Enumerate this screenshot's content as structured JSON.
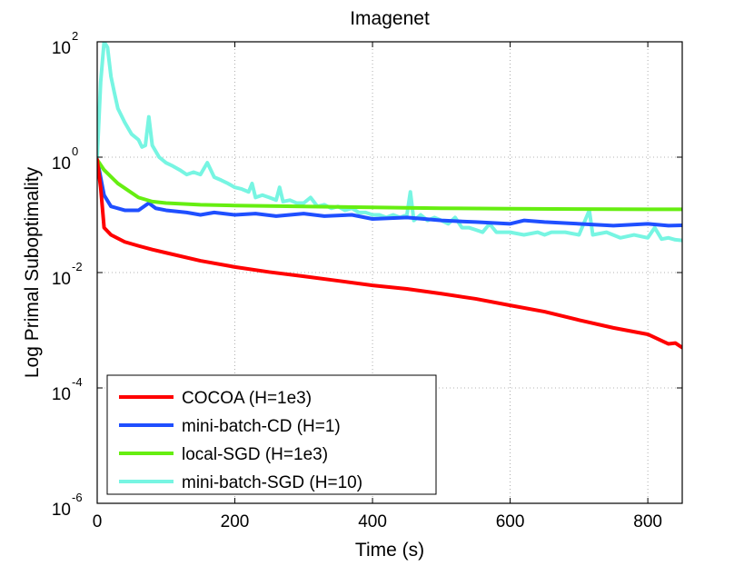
{
  "chart_data": {
    "type": "line",
    "title": "Imagenet",
    "xlabel": "Time (s)",
    "ylabel": "Log Primal Suboptimality",
    "xlim": [
      0,
      850
    ],
    "ylim": [
      1e-06,
      100
    ],
    "yscale": "log",
    "grid": true,
    "legend_position": "bottom-left",
    "x_ticks": [
      {
        "value": 0,
        "label": "0"
      },
      {
        "value": 200,
        "label": "200"
      },
      {
        "value": 400,
        "label": "400"
      },
      {
        "value": 600,
        "label": "600"
      },
      {
        "value": 800,
        "label": "800"
      }
    ],
    "y_ticks": [
      {
        "exp": -6,
        "base": "10",
        "sup": "-6"
      },
      {
        "exp": -4,
        "base": "10",
        "sup": "-4"
      },
      {
        "exp": -2,
        "base": "10",
        "sup": "-2"
      },
      {
        "exp": 0,
        "base": "10",
        "sup": "0"
      },
      {
        "exp": 2,
        "base": "10",
        "sup": "2"
      }
    ],
    "series": [
      {
        "name": "COCOA (H=1e3)",
        "color": "#ff0000",
        "points": [
          [
            0,
            0.9
          ],
          [
            5,
            0.3
          ],
          [
            10,
            0.06
          ],
          [
            20,
            0.045
          ],
          [
            40,
            0.034
          ],
          [
            60,
            0.029
          ],
          [
            80,
            0.025
          ],
          [
            100,
            0.022
          ],
          [
            150,
            0.016
          ],
          [
            200,
            0.0125
          ],
          [
            250,
            0.0102
          ],
          [
            300,
            0.0086
          ],
          [
            350,
            0.0072
          ],
          [
            400,
            0.006
          ],
          [
            450,
            0.0052
          ],
          [
            500,
            0.0043
          ],
          [
            550,
            0.0035
          ],
          [
            600,
            0.0027
          ],
          [
            650,
            0.0021
          ],
          [
            700,
            0.0015
          ],
          [
            750,
            0.0011
          ],
          [
            800,
            0.00085
          ],
          [
            830,
            0.00058
          ],
          [
            840,
            0.0006
          ],
          [
            850,
            0.0005
          ]
        ]
      },
      {
        "name": "mini-batch-CD (H=1)",
        "color": "#1f4fff",
        "points": [
          [
            0,
            0.9
          ],
          [
            10,
            0.22
          ],
          [
            20,
            0.14
          ],
          [
            40,
            0.12
          ],
          [
            60,
            0.12
          ],
          [
            75,
            0.16
          ],
          [
            85,
            0.13
          ],
          [
            100,
            0.12
          ],
          [
            130,
            0.11
          ],
          [
            150,
            0.1
          ],
          [
            170,
            0.11
          ],
          [
            200,
            0.1
          ],
          [
            230,
            0.105
          ],
          [
            260,
            0.095
          ],
          [
            300,
            0.105
          ],
          [
            330,
            0.095
          ],
          [
            370,
            0.1
          ],
          [
            400,
            0.085
          ],
          [
            450,
            0.09
          ],
          [
            500,
            0.08
          ],
          [
            550,
            0.075
          ],
          [
            600,
            0.07
          ],
          [
            620,
            0.08
          ],
          [
            650,
            0.075
          ],
          [
            700,
            0.07
          ],
          [
            750,
            0.065
          ],
          [
            800,
            0.07
          ],
          [
            830,
            0.065
          ],
          [
            850,
            0.066
          ]
        ]
      },
      {
        "name": "local-SGD (H=1e3)",
        "color": "#66ee11",
        "points": [
          [
            0,
            0.9
          ],
          [
            10,
            0.6
          ],
          [
            30,
            0.35
          ],
          [
            60,
            0.2
          ],
          [
            80,
            0.17
          ],
          [
            100,
            0.16
          ],
          [
            150,
            0.15
          ],
          [
            200,
            0.145
          ],
          [
            300,
            0.14
          ],
          [
            400,
            0.135
          ],
          [
            500,
            0.13
          ],
          [
            600,
            0.128
          ],
          [
            700,
            0.126
          ],
          [
            800,
            0.125
          ],
          [
            850,
            0.125
          ]
        ]
      },
      {
        "name": "mini-batch-SGD (H=10)",
        "color": "#77f5e2",
        "points": [
          [
            0,
            1
          ],
          [
            5,
            20
          ],
          [
            10,
            100
          ],
          [
            15,
            80
          ],
          [
            20,
            25
          ],
          [
            25,
            13
          ],
          [
            30,
            7
          ],
          [
            40,
            4
          ],
          [
            50,
            2.5
          ],
          [
            60,
            2
          ],
          [
            65,
            1.5
          ],
          [
            70,
            1.6
          ],
          [
            75,
            5
          ],
          [
            80,
            1.6
          ],
          [
            90,
            1.0
          ],
          [
            100,
            0.8
          ],
          [
            110,
            0.7
          ],
          [
            120,
            0.6
          ],
          [
            130,
            0.5
          ],
          [
            140,
            0.55
          ],
          [
            150,
            0.5
          ],
          [
            160,
            0.8
          ],
          [
            170,
            0.45
          ],
          [
            180,
            0.4
          ],
          [
            190,
            0.35
          ],
          [
            200,
            0.3
          ],
          [
            210,
            0.28
          ],
          [
            220,
            0.25
          ],
          [
            225,
            0.35
          ],
          [
            230,
            0.2
          ],
          [
            240,
            0.22
          ],
          [
            250,
            0.2
          ],
          [
            260,
            0.18
          ],
          [
            265,
            0.3
          ],
          [
            270,
            0.17
          ],
          [
            280,
            0.18
          ],
          [
            290,
            0.16
          ],
          [
            300,
            0.16
          ],
          [
            310,
            0.2
          ],
          [
            320,
            0.14
          ],
          [
            330,
            0.15
          ],
          [
            340,
            0.13
          ],
          [
            350,
            0.14
          ],
          [
            360,
            0.12
          ],
          [
            370,
            0.13
          ],
          [
            380,
            0.11
          ],
          [
            390,
            0.11
          ],
          [
            400,
            0.1
          ],
          [
            410,
            0.1
          ],
          [
            420,
            0.09
          ],
          [
            430,
            0.1
          ],
          [
            440,
            0.09
          ],
          [
            450,
            0.1
          ],
          [
            455,
            0.25
          ],
          [
            460,
            0.08
          ],
          [
            470,
            0.1
          ],
          [
            480,
            0.08
          ],
          [
            490,
            0.09
          ],
          [
            500,
            0.08
          ],
          [
            510,
            0.07
          ],
          [
            520,
            0.09
          ],
          [
            530,
            0.06
          ],
          [
            540,
            0.06
          ],
          [
            550,
            0.055
          ],
          [
            560,
            0.05
          ],
          [
            570,
            0.07
          ],
          [
            580,
            0.05
          ],
          [
            600,
            0.05
          ],
          [
            620,
            0.045
          ],
          [
            640,
            0.05
          ],
          [
            650,
            0.045
          ],
          [
            660,
            0.05
          ],
          [
            680,
            0.05
          ],
          [
            700,
            0.045
          ],
          [
            715,
            0.12
          ],
          [
            720,
            0.045
          ],
          [
            740,
            0.05
          ],
          [
            760,
            0.04
          ],
          [
            780,
            0.045
          ],
          [
            800,
            0.04
          ],
          [
            810,
            0.06
          ],
          [
            820,
            0.038
          ],
          [
            830,
            0.04
          ],
          [
            840,
            0.037
          ],
          [
            850,
            0.036
          ]
        ]
      }
    ]
  }
}
